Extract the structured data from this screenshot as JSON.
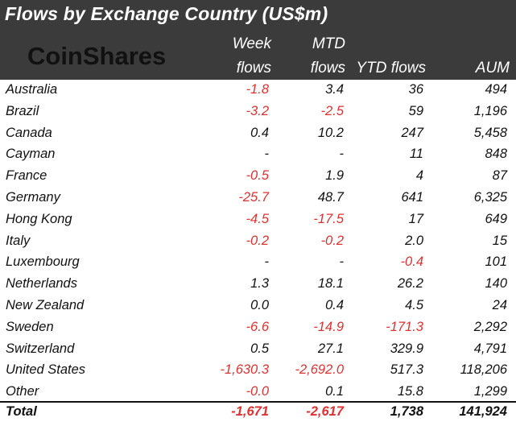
{
  "title": "Flows by Exchange Country (US$m)",
  "logo": {
    "text": "CoinShares"
  },
  "columns": {
    "country": "",
    "week_line1": "Week",
    "week_line2": "flows",
    "mtd_line1": "MTD",
    "mtd_line2": "flows",
    "ytd": "YTD flows",
    "aum": "AUM"
  },
  "chart_data": {
    "type": "table",
    "title": "Flows by Exchange Country (US$m)",
    "headers": [
      "",
      "Week flows",
      "MTD flows",
      "YTD flows",
      "AUM"
    ],
    "rows": [
      [
        "Australia",
        "-1.8",
        "3.4",
        "36",
        "494"
      ],
      [
        "Brazil",
        "-3.2",
        "-2.5",
        "59",
        "1,196"
      ],
      [
        "Canada",
        "0.4",
        "10.2",
        "247",
        "5,458"
      ],
      [
        "Cayman",
        "-",
        "-",
        "11",
        "848"
      ],
      [
        "France",
        "-0.5",
        "1.9",
        "4",
        "87"
      ],
      [
        "Germany",
        "-25.7",
        "48.7",
        "641",
        "6,325"
      ],
      [
        "Hong Kong",
        "-4.5",
        "-17.5",
        "17",
        "649"
      ],
      [
        "Italy",
        "-0.2",
        "-0.2",
        "2.0",
        "15"
      ],
      [
        "Luxembourg",
        "-",
        "-",
        "-0.4",
        "101"
      ],
      [
        "Netherlands",
        "1.3",
        "18.1",
        "26.2",
        "140"
      ],
      [
        "New Zealand",
        "0.0",
        "0.4",
        "4.5",
        "24"
      ],
      [
        "Sweden",
        "-6.6",
        "-14.9",
        "-171.3",
        "2,292"
      ],
      [
        "Switzerland",
        "0.5",
        "27.1",
        "329.9",
        "4,791"
      ],
      [
        "United States",
        "-1,630.3",
        "-2,692.0",
        "517.3",
        "118,206"
      ],
      [
        "Other",
        "-0.0",
        "0.1",
        "15.8",
        "1,299"
      ]
    ],
    "total": [
      "Total",
      "-1,671",
      "-2,617",
      "1,738",
      "141,924"
    ]
  },
  "colors": {
    "header_bg": "#3b3b3b",
    "negative": "#e03131",
    "text": "#111111",
    "header_text": "#ffffff",
    "logo": "#111111"
  }
}
